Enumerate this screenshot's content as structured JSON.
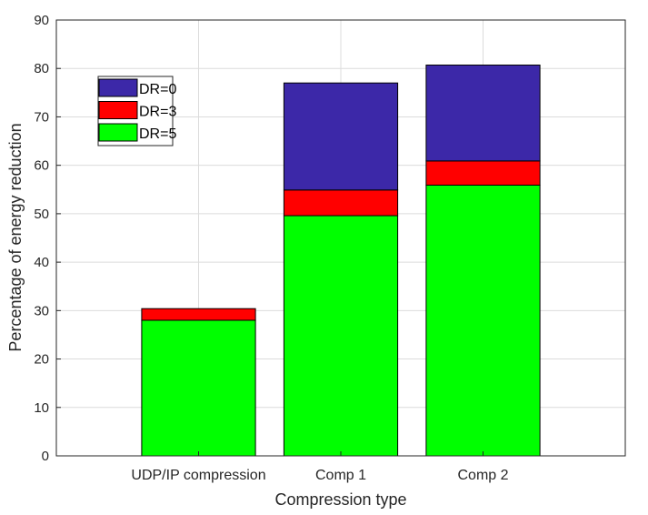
{
  "chart_data": {
    "type": "bar",
    "stacked": true,
    "title": "",
    "xlabel": "Compression type",
    "ylabel": "Percentage of energy reduction",
    "categories": [
      "UDP/IP compression",
      "Comp 1",
      "Comp 2"
    ],
    "ylim": [
      0,
      90
    ],
    "yticks": [
      0,
      10,
      20,
      30,
      40,
      50,
      60,
      70,
      80,
      90
    ],
    "grid": true,
    "legend_position": "top-left",
    "series": [
      {
        "name": "DR=5",
        "color": "#00ff00",
        "values": [
          28.0,
          49.6,
          55.9
        ]
      },
      {
        "name": "DR=3",
        "color": "#ff0000",
        "values": [
          2.4,
          5.3,
          5.0
        ]
      },
      {
        "name": "DR=0",
        "color": "#3c28a8",
        "values": [
          0,
          22.1,
          19.8
        ]
      }
    ],
    "legend_order": [
      "DR=0",
      "DR=3",
      "DR=5"
    ]
  }
}
